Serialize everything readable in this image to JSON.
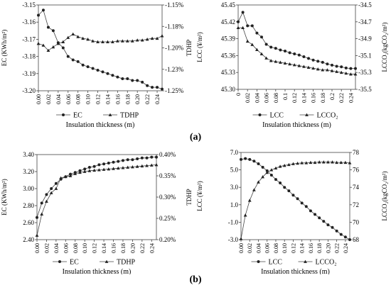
{
  "captions": {
    "a": "(a)",
    "b": "(b)"
  },
  "chart_data": [
    {
      "id": "a-left",
      "type": "line",
      "x": [
        0.0,
        0.01,
        0.02,
        0.03,
        0.04,
        0.05,
        0.06,
        0.07,
        0.08,
        0.09,
        0.1,
        0.11,
        0.12,
        0.13,
        0.14,
        0.15,
        0.16,
        0.17,
        0.18,
        0.19,
        0.2,
        0.21,
        0.22,
        0.23,
        0.24,
        0.25
      ],
      "xticks": [
        "0.00",
        "0.02",
        "0.04",
        "0.06",
        "0.08",
        "0.10",
        "0.12",
        "0.14",
        "0.16",
        "0.18",
        "0.20",
        "0.22",
        "0.24"
      ],
      "xlabel": "Insulation thickness (m)",
      "ylabel_left": "EC (KWh/m²)",
      "ylim_left": [
        -3.2,
        -3.15
      ],
      "yticks_left": [
        "-3.15",
        "-3.16",
        "-3.17",
        "-3.18",
        "-3.19",
        "-3.20"
      ],
      "ylabel_right": "TDHP",
      "ylim_right": [
        -1.25,
        -1.15
      ],
      "yticks_right": [
        "-1.15%",
        "-1.18%",
        "-1.20%",
        "-1.23%",
        "-1.25%"
      ],
      "series": [
        {
          "name": "EC",
          "marker": "circle",
          "axis": "left",
          "values": [
            -3.156,
            -3.153,
            -3.163,
            -3.165,
            -3.172,
            -3.175,
            -3.18,
            -3.182,
            -3.183,
            -3.185,
            -3.186,
            -3.187,
            -3.188,
            -3.189,
            -3.19,
            -3.191,
            -3.192,
            -3.193,
            -3.193,
            -3.194,
            -3.194,
            -3.195,
            -3.197,
            -3.198,
            -3.198,
            -3.199
          ]
        },
        {
          "name": "TDHP",
          "marker": "triangle",
          "axis": "right",
          "values": [
            -1.195,
            -1.197,
            -1.203,
            -1.199,
            -1.195,
            -1.193,
            -1.188,
            -1.184,
            -1.187,
            -1.189,
            -1.19,
            -1.192,
            -1.193,
            -1.193,
            -1.193,
            -1.193,
            -1.192,
            -1.192,
            -1.192,
            -1.192,
            -1.191,
            -1.191,
            -1.19,
            -1.189,
            -1.189,
            -1.186
          ]
        }
      ]
    },
    {
      "id": "a-right",
      "type": "line",
      "x": [
        0.0,
        0.01,
        0.02,
        0.03,
        0.04,
        0.05,
        0.06,
        0.07,
        0.08,
        0.09,
        0.1,
        0.11,
        0.12,
        0.13,
        0.14,
        0.15,
        0.16,
        0.17,
        0.18,
        0.19,
        0.2,
        0.21,
        0.22,
        0.23,
        0.24,
        0.25
      ],
      "xticks": [
        "0",
        "0.02",
        "0.04",
        "0.06",
        "0.08",
        "0.1",
        "0.12",
        "0.14",
        "0.16",
        "0.18",
        "0.2",
        "0.22",
        "0.24"
      ],
      "xlabel": "Insulation thickness (m)",
      "ylabel_left": "LCC (¥/m²)",
      "ylim_left": [
        45.3,
        45.45
      ],
      "yticks_left": [
        "45.45",
        "45.42",
        "45.39",
        "45.36",
        "45.33",
        "45.30"
      ],
      "ylabel_right": "LCCO₂(kgCO₂/m²)",
      "ylim_right": [
        -35.5,
        -34.5
      ],
      "yticks_right": [
        "-34.5",
        "-34.7",
        "-34.9",
        "-35.1",
        "-35.3",
        "-35.5"
      ],
      "series": [
        {
          "name": "LCC",
          "marker": "circle",
          "axis": "left",
          "values": [
            45.42,
            45.437,
            45.413,
            45.413,
            45.4,
            45.393,
            45.38,
            45.375,
            45.373,
            45.37,
            45.368,
            45.365,
            45.363,
            45.361,
            45.358,
            45.355,
            45.352,
            45.35,
            45.348,
            45.345,
            45.343,
            45.341,
            45.34,
            45.338,
            45.337,
            45.337
          ]
        },
        {
          "name": "LCCO₂",
          "marker": "triangle",
          "axis": "right",
          "values": [
            -34.77,
            -34.77,
            -34.93,
            -34.97,
            -35.03,
            -35.08,
            -35.13,
            -35.16,
            -35.17,
            -35.18,
            -35.19,
            -35.2,
            -35.21,
            -35.22,
            -35.23,
            -35.24,
            -35.25,
            -35.26,
            -35.27,
            -35.27,
            -35.28,
            -35.29,
            -35.3,
            -35.31,
            -35.32,
            -35.32
          ]
        }
      ]
    },
    {
      "id": "b-left",
      "type": "line",
      "x": [
        0.0,
        0.01,
        0.02,
        0.03,
        0.04,
        0.05,
        0.06,
        0.07,
        0.08,
        0.09,
        0.1,
        0.11,
        0.12,
        0.13,
        0.14,
        0.15,
        0.16,
        0.17,
        0.18,
        0.19,
        0.2,
        0.21,
        0.22,
        0.23,
        0.24,
        0.25
      ],
      "xticks": [
        "0.00",
        "0.02",
        "0.04",
        "0.06",
        "0.08",
        "0.10",
        "0.12",
        "0.14",
        "0.16",
        "0.18",
        "0.20",
        "0.22",
        "0.24"
      ],
      "xlabel": "Insulation thickness (m)",
      "ylabel_left": "EC (KWh/m²)",
      "ylim_left": [
        2.4,
        3.4
      ],
      "yticks_left": [
        "3.40",
        "3.20",
        "3.00",
        "2.80",
        "2.60",
        "2.40"
      ],
      "ylabel_right": "TDHP",
      "ylim_right": [
        0.2,
        0.4
      ],
      "yticks_right": [
        "0.40%",
        "0.35%",
        "0.30%",
        "0.25%",
        "0.20%"
      ],
      "series": [
        {
          "name": "EC",
          "marker": "circle",
          "axis": "left",
          "values": [
            2.66,
            2.83,
            2.93,
            3.0,
            3.06,
            3.11,
            3.14,
            3.17,
            3.19,
            3.21,
            3.23,
            3.25,
            3.26,
            3.28,
            3.29,
            3.3,
            3.31,
            3.32,
            3.33,
            3.34,
            3.34,
            3.35,
            3.36,
            3.36,
            3.37,
            3.37
          ]
        },
        {
          "name": "TDHP",
          "marker": "triangle",
          "axis": "right",
          "values": [
            0.21,
            0.26,
            0.29,
            0.31,
            0.32,
            0.345,
            0.348,
            0.35,
            0.355,
            0.358,
            0.36,
            0.362,
            0.363,
            0.364,
            0.365,
            0.366,
            0.367,
            0.368,
            0.369,
            0.37,
            0.371,
            0.372,
            0.373,
            0.374,
            0.375,
            0.376
          ]
        }
      ]
    },
    {
      "id": "b-right",
      "type": "line",
      "x": [
        0.0,
        0.01,
        0.02,
        0.03,
        0.04,
        0.05,
        0.06,
        0.07,
        0.08,
        0.09,
        0.1,
        0.11,
        0.12,
        0.13,
        0.14,
        0.15,
        0.16,
        0.17,
        0.18,
        0.19,
        0.2,
        0.21,
        0.22,
        0.23,
        0.24,
        0.25
      ],
      "xticks": [
        "0.00",
        "0.02",
        "0.04",
        "0.06",
        "0.08",
        "0.10",
        "0.12",
        "0.14",
        "0.16",
        "0.18",
        "0.20",
        "0.22",
        "0.24"
      ],
      "xlabel": "Insulation thickness (m)",
      "ylabel_left": "LCC (¥/m²)",
      "ylim_left": [
        -3.0,
        7.0
      ],
      "yticks_left": [
        "7.0",
        "5.0",
        "3.0",
        "1.0",
        "-1.0",
        "-3.0"
      ],
      "ylabel_right": "LCCO₂(kgCO₂/m²)",
      "ylim_right": [
        68,
        78
      ],
      "yticks_right": [
        "78",
        "76",
        "74",
        "72",
        "70",
        "68"
      ],
      "series": [
        {
          "name": "LCC",
          "marker": "circle",
          "axis": "left",
          "values": [
            6.2,
            6.3,
            6.2,
            6.0,
            5.7,
            5.3,
            4.9,
            4.4,
            3.9,
            3.5,
            3.0,
            2.6,
            2.1,
            1.7,
            1.2,
            0.8,
            0.3,
            -0.1,
            -0.5,
            -0.9,
            -1.3,
            -1.6,
            -2.0,
            -2.4,
            -2.7,
            -3.0
          ]
        },
        {
          "name": "LCCO₂",
          "marker": "triangle",
          "axis": "right",
          "values": [
            68.1,
            70.8,
            72.5,
            73.7,
            74.6,
            75.2,
            75.7,
            76.0,
            76.2,
            76.4,
            76.5,
            76.6,
            76.7,
            76.75,
            76.8,
            76.8,
            76.85,
            76.85,
            76.9,
            76.9,
            76.9,
            76.9,
            76.85,
            76.85,
            76.85,
            76.8
          ]
        }
      ]
    }
  ]
}
